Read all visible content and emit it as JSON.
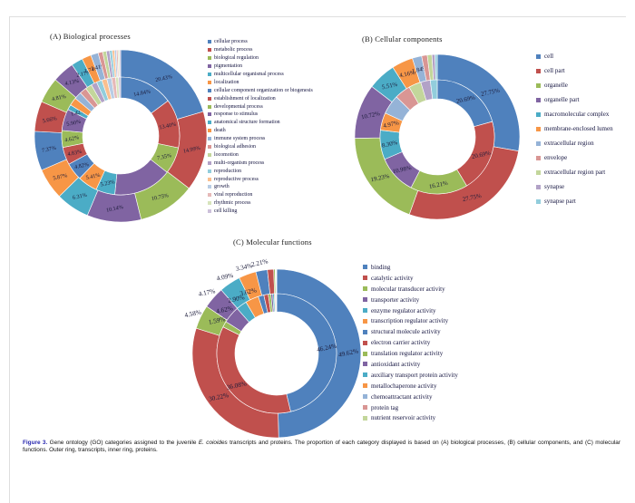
{
  "page": {
    "caption": {
      "label": "Figure 3.",
      "text_before_species": " Gene ontology (GO) categories assigned to the juvenile ",
      "species": "E. coioides",
      "text_after_species": " transcripts and proteins. The proportion of each category displayed is based on (A) biological processes, (B) cellular components, and (C) molecular functions. Outer ring, transcripts, inner ring, proteins.",
      "label_color": "#2626ae"
    }
  },
  "chart_data": [
    {
      "panel": "A",
      "type": "donut",
      "title": "(A) Biological processes",
      "rings": {
        "outer": "transcripts",
        "inner": "proteins"
      },
      "legend_position": "right",
      "categories": [
        "cellular process",
        "metabolic process",
        "biological regulation",
        "pigmentation",
        "multicellular organismal process",
        "localization",
        "cellular component organization or biogenesis",
        "establishment of localization",
        "developmental process",
        "response to stimulus",
        "anatomical structure formation",
        "death",
        "immune system process",
        "biological adhesion",
        "locomotion",
        "multi-organism process",
        "reproduction",
        "reproductive process",
        "growth",
        "viral reproduction",
        "rhythmic process",
        "cell killing"
      ],
      "colors": [
        "#4F81BD",
        "#C0504D",
        "#9BBB59",
        "#8064A2",
        "#4BACC6",
        "#F79646",
        "#4F81BD",
        "#C0504D",
        "#9BBB59",
        "#8064A2",
        "#4BACC6",
        "#F79646",
        "#95B3D7",
        "#D99694",
        "#C3D69B",
        "#B2A2C7",
        "#92CDDC",
        "#FABF8F",
        "#B8CCE4",
        "#E6B9B8",
        "#D7E4BC",
        "#CCC0DA"
      ],
      "outer_values": [
        20.43,
        14.99,
        10.75,
        10.14,
        6.31,
        5.87,
        7.37,
        5.66,
        4.81,
        4.13,
        2.17,
        1.74,
        1.41,
        0.85,
        0.7,
        0.6,
        0.5,
        0.42,
        0.35,
        0.3,
        0.26,
        0.24
      ],
      "outer_labels": [
        "20.43%",
        "14.99%",
        "10.75%",
        "10.14%",
        "6.31%",
        "5.87%",
        "7.37%",
        "5.66%",
        "4.81%",
        "4.13%",
        "2.17%",
        "1.74%",
        "1.41%",
        "",
        "",
        "",
        "",
        "",
        "",
        "",
        "",
        ""
      ],
      "inner_values": [
        14.84,
        13.4,
        7.35,
        16.0,
        5.23,
        5.41,
        4.82,
        4.83,
        4.62,
        5.9,
        1.42,
        2.2,
        2.0,
        1.9,
        1.8,
        1.6,
        1.5,
        1.4,
        1.3,
        1.1,
        0.8,
        0.58
      ],
      "inner_labels": [
        "14.84%",
        "13.40%",
        "7.35%",
        "",
        "5.23%",
        "5.41%",
        "4.82%",
        "4.83%",
        "4.62%",
        "5.90%",
        "1.42%",
        "",
        "",
        "",
        "",
        "",
        "",
        "",
        "",
        "",
        "",
        ""
      ]
    },
    {
      "panel": "B",
      "type": "donut",
      "title": "(B) Cellular components",
      "rings": {
        "outer": "transcripts",
        "inner": "proteins"
      },
      "legend_position": "right",
      "categories": [
        "cell",
        "cell part",
        "organelle",
        "organelle part",
        "macromolecular complex",
        "membrane-enclosed lumen",
        "extracellular region",
        "envelope",
        "extracellular region part",
        "synapse",
        "synapse part"
      ],
      "colors": [
        "#4F81BD",
        "#C0504D",
        "#9BBB59",
        "#8064A2",
        "#4BACC6",
        "#F79646",
        "#95B3D7",
        "#D99694",
        "#C3D69B",
        "#B2A2C7",
        "#92CDDC"
      ],
      "outer_values": [
        27.75,
        27.75,
        19.23,
        10.72,
        5.51,
        4.16,
        1.84,
        1.1,
        0.9,
        0.6,
        0.44
      ],
      "outer_labels": [
        "27.75%",
        "27.75%",
        "19.23%",
        "10.72%",
        "5.51%",
        "4.16%",
        "1.84%",
        "",
        "",
        "",
        ""
      ],
      "inner_values": [
        20.69,
        20.69,
        16.21,
        10.98,
        8.3,
        4.97,
        5.5,
        4.5,
        3.5,
        2.7,
        1.96
      ],
      "inner_labels": [
        "20.69%",
        "20.69%",
        "16.21%",
        "10.98%",
        "8.30%",
        "4.97%",
        "",
        "",
        "",
        "",
        ""
      ]
    },
    {
      "panel": "C",
      "type": "donut",
      "title": "(C) Molecular functions",
      "rings": {
        "outer": "transcripts",
        "inner": "proteins"
      },
      "legend_position": "right",
      "categories": [
        "binding",
        "catalytic activity",
        "molecular transducer activity",
        "transporter activity",
        "enzyme regulator activity",
        "transcription regulator activity",
        "structural molecule activity",
        "electron carrier activity",
        "translation regulator activity",
        "antioxidant activity",
        "auxiliary transport protein activity",
        "metallochaperone activity",
        "chemoattractant activity",
        "protein tag",
        "nutrient reservoir activity"
      ],
      "colors": [
        "#4F81BD",
        "#C0504D",
        "#9BBB59",
        "#8064A2",
        "#4BACC6",
        "#F79646",
        "#4F81BD",
        "#C0504D",
        "#9BBB59",
        "#8064A2",
        "#4BACC6",
        "#F79646",
        "#95B3D7",
        "#D99694",
        "#C3D69B"
      ],
      "outer_values": [
        49.62,
        30.22,
        4.58,
        4.17,
        4.09,
        3.34,
        2.21,
        1.2,
        0.3,
        0.1,
        0.05,
        0.04,
        0.03,
        0.03,
        0.02
      ],
      "outer_labels": [
        "49.62%",
        "30.22%",
        "4.58%",
        "4.17%",
        "4.09%",
        "3.34%",
        "2.21%",
        "",
        "",
        "",
        "",
        "",
        "",
        "",
        ""
      ],
      "inner_values": [
        46.24,
        36.08,
        1.59,
        4.62,
        2.9,
        3.62,
        1.5,
        1.2,
        0.7,
        0.5,
        0.4,
        0.25,
        0.2,
        0.12,
        0.08
      ],
      "inner_labels": [
        "46.24%",
        "36.08%",
        "1.59%",
        "4.62%",
        "2.90%",
        "3.62%",
        "",
        "",
        "",
        "",
        "",
        "",
        "",
        "",
        ""
      ]
    }
  ]
}
